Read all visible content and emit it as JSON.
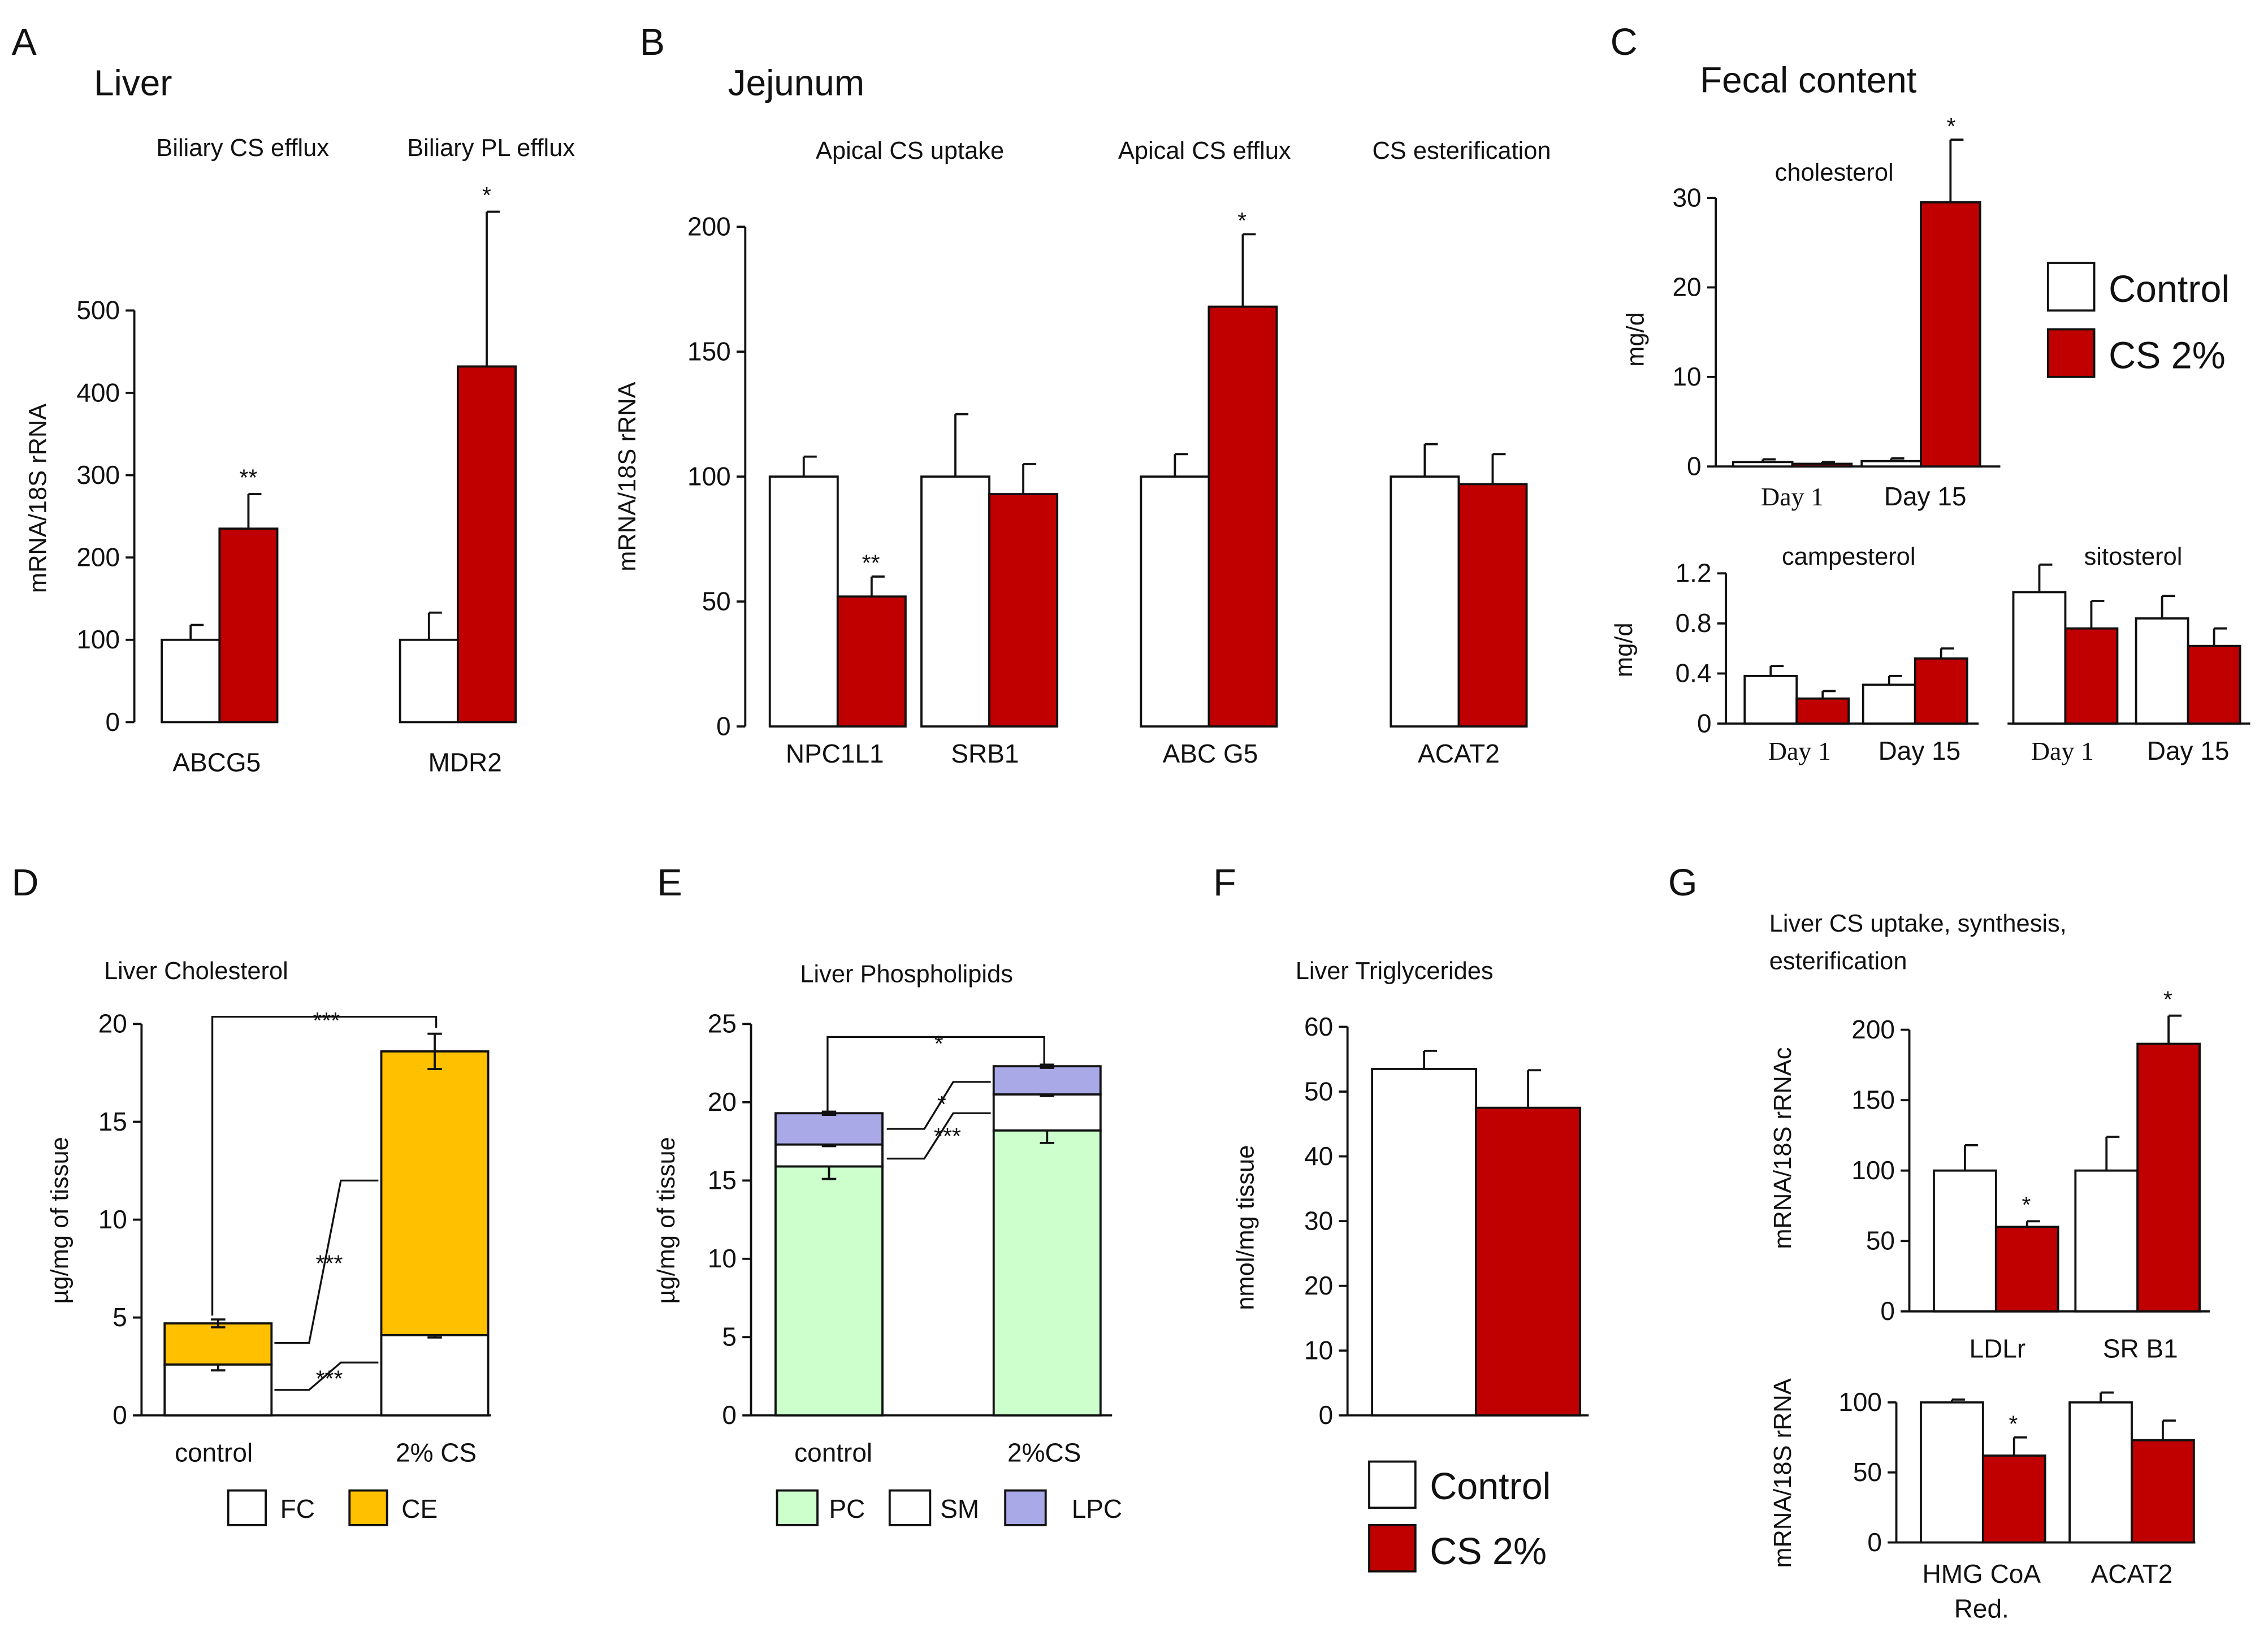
{
  "colors": {
    "control": "#ffffff",
    "cs": "#c00000",
    "ce": "#ffc000",
    "pc": "#ccffcc",
    "lpc": "#a9a9e8",
    "axis": "#111111"
  },
  "panels": {
    "A": {
      "letter": "A",
      "tissue": "Liver"
    },
    "B": {
      "letter": "B",
      "tissue": "Jejunum"
    },
    "C": {
      "letter": "C",
      "tissue": "Fecal content"
    },
    "D": {
      "letter": "D"
    },
    "E": {
      "letter": "E"
    },
    "F": {
      "letter": "F"
    },
    "G": {
      "letter": "G"
    }
  },
  "legends": {
    "C": [
      "Control",
      "CS 2%"
    ],
    "D": [
      "FC",
      "CE"
    ],
    "E": [
      "PC",
      "SM",
      "LPC"
    ],
    "F": [
      "Control",
      "CS 2%"
    ]
  },
  "chart_data": [
    {
      "panel": "A",
      "type": "bar",
      "ylabel": "mRNA/18S rRNA",
      "ylim": [
        0,
        500
      ],
      "yticks": [
        0,
        100,
        200,
        300,
        400,
        500
      ],
      "group_titles": [
        "Biliary CS efflux",
        "Biliary PL efflux"
      ],
      "categories": [
        "ABCG5",
        "MDR2"
      ],
      "series": [
        {
          "name": "Control",
          "values": [
            100,
            100
          ],
          "errors": [
            18,
            33
          ]
        },
        {
          "name": "CS 2%",
          "values": [
            235,
            432
          ],
          "errors": [
            42,
            188
          ]
        }
      ],
      "significance": [
        "**",
        "*"
      ]
    },
    {
      "panel": "B",
      "type": "bar",
      "ylabel": "mRNA/18S rRNA",
      "ylim": [
        0,
        200
      ],
      "yticks": [
        0,
        50,
        100,
        150,
        200
      ],
      "group_titles": [
        "Apical CS uptake",
        "Apical CS efflux",
        "CS esterification"
      ],
      "categories": [
        "NPC1L1",
        "SRB1",
        "ABC G5",
        "ACAT2"
      ],
      "series": [
        {
          "name": "Control",
          "values": [
            100,
            100,
            100,
            100
          ],
          "errors": [
            8,
            25,
            9,
            13
          ]
        },
        {
          "name": "CS 2%",
          "values": [
            52,
            93,
            168,
            97
          ],
          "errors": [
            8,
            12,
            29,
            12
          ]
        }
      ],
      "significance": [
        "**",
        "",
        "*",
        ""
      ]
    },
    {
      "panel": "C1",
      "type": "bar",
      "title": "cholesterol",
      "ylabel": "mg/d",
      "ylim": [
        0,
        30
      ],
      "yticks": [
        0,
        10,
        20,
        30
      ],
      "categories": [
        "Day 1",
        "Day 15"
      ],
      "series": [
        {
          "name": "Control",
          "values": [
            0.5,
            0.6
          ],
          "errors": [
            0.3,
            0.3
          ]
        },
        {
          "name": "CS 2%",
          "values": [
            0.3,
            29.5
          ],
          "errors": [
            0.2,
            7
          ]
        }
      ],
      "significance": [
        "",
        "*"
      ]
    },
    {
      "panel": "C2",
      "type": "bar",
      "title": "campesterol",
      "ylabel": "mg/d",
      "ylim": [
        0,
        1.2
      ],
      "yticks": [
        0,
        0.4,
        0.8,
        1.2
      ],
      "categories": [
        "Day 1",
        "Day 15"
      ],
      "series": [
        {
          "name": "Control",
          "values": [
            0.38,
            0.31
          ],
          "errors": [
            0.08,
            0.07
          ]
        },
        {
          "name": "CS 2%",
          "values": [
            0.2,
            0.52
          ],
          "errors": [
            0.06,
            0.08
          ]
        }
      ]
    },
    {
      "panel": "C3",
      "type": "bar",
      "title": "sitosterol",
      "categories": [
        "Day 1",
        "Day 15"
      ],
      "series": [
        {
          "name": "Control",
          "values": [
            1.05,
            0.84
          ],
          "errors": [
            0.22,
            0.18
          ]
        },
        {
          "name": "CS 2%",
          "values": [
            0.76,
            0.62
          ],
          "errors": [
            0.22,
            0.14
          ]
        }
      ]
    },
    {
      "panel": "D",
      "type": "bar",
      "stacked": true,
      "title": "Liver Cholesterol",
      "ylabel": "µg/mg of tissue",
      "ylim": [
        0,
        20
      ],
      "yticks": [
        0,
        5,
        10,
        15,
        20
      ],
      "categories": [
        "control",
        "2% CS"
      ],
      "series": [
        {
          "name": "FC",
          "values": [
            2.6,
            4.1
          ],
          "errors": [
            0.3,
            0.12
          ]
        },
        {
          "name": "CE",
          "values": [
            2.1,
            14.5
          ],
          "errors": [
            0.2,
            0.9
          ]
        }
      ],
      "significance": [
        "***",
        "***",
        "***"
      ]
    },
    {
      "panel": "E",
      "type": "bar",
      "stacked": true,
      "title": "Liver Phospholipids",
      "ylabel": "µg/mg of tissue",
      "ylim": [
        0,
        25
      ],
      "yticks": [
        0,
        5,
        10,
        15,
        20,
        25
      ],
      "categories": [
        "control",
        "2%CS"
      ],
      "series": [
        {
          "name": "PC",
          "values": [
            15.9,
            18.2
          ],
          "errors": [
            0.8,
            0.8
          ]
        },
        {
          "name": "SM",
          "values": [
            1.4,
            2.3
          ],
          "errors": [
            0.1,
            0.1
          ]
        },
        {
          "name": "LPC",
          "values": [
            2.0,
            1.8
          ],
          "errors": [
            0.1,
            0.1
          ]
        }
      ],
      "significance": [
        "*",
        "*",
        "***"
      ]
    },
    {
      "panel": "F",
      "type": "bar",
      "title": "Liver Triglycerides",
      "ylabel": "nmol/mg tissue",
      "ylim": [
        0,
        60
      ],
      "yticks": [
        0,
        10,
        20,
        30,
        40,
        50,
        60
      ],
      "series": [
        {
          "name": "Control",
          "values": [
            53.5
          ],
          "errors": [
            2.8
          ]
        },
        {
          "name": "CS 2%",
          "values": [
            47.5
          ],
          "errors": [
            5.8
          ]
        }
      ]
    },
    {
      "panel": "G1",
      "type": "bar",
      "title": "Liver CS uptake, synthesis, esterification",
      "ylabel": "mRNA/18S rRNAc",
      "ylim": [
        0,
        200
      ],
      "yticks": [
        0,
        50,
        100,
        150,
        200
      ],
      "categories": [
        "LDLr",
        "SR B1"
      ],
      "series": [
        {
          "name": "Control",
          "values": [
            100,
            100
          ],
          "errors": [
            18,
            24
          ]
        },
        {
          "name": "CS 2%",
          "values": [
            60,
            190
          ],
          "errors": [
            4,
            20
          ]
        }
      ],
      "significance": [
        "*",
        "*"
      ]
    },
    {
      "panel": "G2",
      "type": "bar",
      "ylabel": "mRNA/18S rRNA",
      "ylim": [
        0,
        100
      ],
      "yticks": [
        0,
        50,
        100
      ],
      "categories": [
        "HMG CoA Red.",
        "ACAT2"
      ],
      "series": [
        {
          "name": "Control",
          "values": [
            100,
            100
          ],
          "errors": [
            2,
            7
          ]
        },
        {
          "name": "CS 2%",
          "values": [
            62,
            73
          ],
          "errors": [
            13,
            14
          ]
        }
      ],
      "significance": [
        "*",
        ""
      ]
    }
  ]
}
